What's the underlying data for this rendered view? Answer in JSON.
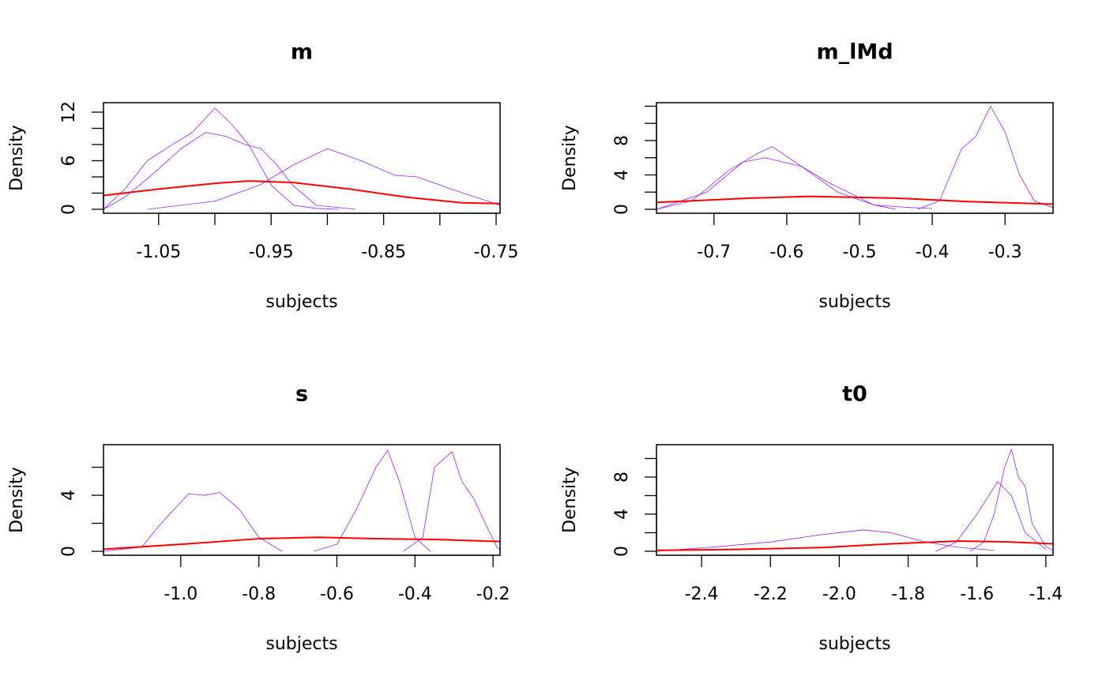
{
  "chart_data": [
    {
      "type": "line",
      "title": "m",
      "xlabel": "subjects",
      "ylabel": "Density",
      "xlim": [
        -1.099,
        -0.7465
      ],
      "ylim": [
        -0.49,
        13.17
      ],
      "xticks": [
        -1.05,
        -0.95,
        -0.85,
        -0.75
      ],
      "xminorticks": [
        -1.0,
        -0.9,
        -0.8
      ],
      "yticks": [
        0,
        6,
        12
      ],
      "yminorticks": [
        2,
        4,
        8,
        10
      ],
      "series": [
        {
          "color": "#a020f0",
          "x": [
            -1.099,
            -1.08,
            -1.06,
            -1.04,
            -1.02,
            -1.0,
            -0.985,
            -0.97,
            -0.95,
            -0.93,
            -0.91,
            -0.89
          ],
          "values": [
            0,
            2.5,
            6,
            7.8,
            9.5,
            12.5,
            10.5,
            8,
            3,
            0.5,
            0.1,
            0
          ]
        },
        {
          "color": "#a020f0",
          "x": [
            -1.099,
            -1.08,
            -1.058,
            -1.03,
            -1.008,
            -0.99,
            -0.973,
            -0.959,
            -0.945,
            -0.931,
            -0.91,
            -0.875
          ],
          "values": [
            0,
            1.5,
            4,
            7.5,
            9.5,
            9,
            8,
            7.5,
            5.5,
            3,
            0.5,
            0
          ]
        },
        {
          "color": "#a020f0",
          "x": [
            -1.06,
            -1.0,
            -0.96,
            -0.93,
            -0.9,
            -0.87,
            -0.84,
            -0.82,
            -0.79,
            -0.7465
          ],
          "values": [
            0,
            1,
            3,
            5.5,
            7.5,
            6,
            4.2,
            4,
            2.5,
            0.5
          ]
        },
        {
          "color": "#ff0000",
          "x": [
            -1.099,
            -1.05,
            -1.0,
            -0.97,
            -0.93,
            -0.88,
            -0.83,
            -0.78,
            -0.7465
          ],
          "values": [
            1.7,
            2.5,
            3.2,
            3.5,
            3.3,
            2.5,
            1.5,
            0.8,
            0.7
          ]
        }
      ]
    },
    {
      "type": "line",
      "title": "m_lMd",
      "xlabel": "subjects",
      "ylabel": "Density",
      "xlim": [
        -0.779,
        -0.234
      ],
      "ylim": [
        -0.46,
        12.41
      ],
      "xticks": [
        -0.7,
        -0.6,
        -0.5,
        -0.4,
        -0.3
      ],
      "yticks": [
        0,
        4,
        8
      ],
      "yminorticks": [
        2,
        6,
        10,
        12
      ],
      "series": [
        {
          "color": "#a020f0",
          "x": [
            -0.779,
            -0.73,
            -0.68,
            -0.64,
            -0.62,
            -0.58,
            -0.53,
            -0.48,
            -0.43,
            -0.4
          ],
          "values": [
            0,
            1,
            4.5,
            6.5,
            7.3,
            5,
            2,
            0.5,
            0.2,
            0.1
          ]
        },
        {
          "color": "#a020f0",
          "x": [
            -0.779,
            -0.71,
            -0.66,
            -0.63,
            -0.58,
            -0.54,
            -0.48,
            -0.45
          ],
          "values": [
            0,
            2,
            5.5,
            6,
            5,
            3,
            0.5,
            0
          ]
        },
        {
          "color": "#a020f0",
          "x": [
            -0.42,
            -0.39,
            -0.36,
            -0.34,
            -0.32,
            -0.3,
            -0.28,
            -0.26,
            -0.234
          ],
          "values": [
            0,
            1,
            7,
            8.5,
            12,
            9,
            4,
            1,
            0.2
          ]
        },
        {
          "color": "#ff0000",
          "x": [
            -0.779,
            -0.65,
            -0.57,
            -0.45,
            -0.35,
            -0.234
          ],
          "values": [
            0.8,
            1.3,
            1.5,
            1.3,
            0.9,
            0.6
          ]
        }
      ]
    },
    {
      "type": "line",
      "title": "s",
      "xlabel": "subjects",
      "ylabel": "Density",
      "xlim": [
        -1.198,
        -0.182
      ],
      "ylim": [
        -0.28,
        7.61
      ],
      "xticks": [
        {
          "value": -1.0,
          "label": "-1.0"
        },
        -0.8,
        -0.6,
        -0.4,
        -0.2
      ],
      "yticks": [
        0,
        4
      ],
      "yminorticks": [
        2,
        6
      ],
      "series": [
        {
          "color": "#a020f0",
          "x": [
            -1.198,
            -1.1,
            -1.05,
            -0.98,
            -0.94,
            -0.9,
            -0.85,
            -0.8,
            -0.74
          ],
          "values": [
            0,
            0.3,
            2,
            4.1,
            4,
            4.2,
            3,
            1,
            0
          ]
        },
        {
          "color": "#a020f0",
          "x": [
            -0.66,
            -0.6,
            -0.55,
            -0.5,
            -0.47,
            -0.44,
            -0.4,
            -0.36
          ],
          "values": [
            0,
            0.5,
            3,
            6,
            7.2,
            5,
            1,
            0
          ]
        },
        {
          "color": "#a020f0",
          "x": [
            -0.43,
            -0.38,
            -0.35,
            -0.33,
            -0.305,
            -0.28,
            -0.25,
            -0.22,
            -0.19,
            -0.182
          ],
          "values": [
            0,
            1,
            6,
            6.5,
            7.1,
            5,
            3.8,
            2,
            0.3,
            0.1
          ]
        },
        {
          "color": "#ff0000",
          "x": [
            -1.198,
            -1.0,
            -0.8,
            -0.65,
            -0.5,
            -0.35,
            -0.182
          ],
          "values": [
            0.15,
            0.5,
            0.9,
            1.0,
            0.9,
            0.85,
            0.7
          ]
        }
      ]
    },
    {
      "type": "line",
      "title": "t0",
      "xlabel": "subjects",
      "ylabel": "Density",
      "xlim": [
        -2.531,
        -1.379
      ],
      "ylim": [
        -0.43,
        11.49
      ],
      "xticks": [
        -2.4,
        -2.2,
        {
          "value": -2.0,
          "label": "-2.0"
        },
        -1.8,
        -1.6,
        -1.4
      ],
      "yticks": [
        0,
        4,
        8
      ],
      "yminorticks": [
        2,
        6,
        10
      ],
      "series": [
        {
          "color": "#a020f0",
          "x": [
            -2.531,
            -2.35,
            -2.2,
            -2.05,
            -1.93,
            -1.85,
            -1.75,
            -1.65,
            -1.55
          ],
          "values": [
            0,
            0.5,
            1,
            1.8,
            2.3,
            2,
            1,
            0.4,
            0.1
          ]
        },
        {
          "color": "#a020f0",
          "x": [
            -1.72,
            -1.66,
            -1.6,
            -1.54,
            -1.5,
            -1.46,
            -1.4
          ],
          "values": [
            0,
            1,
            4,
            7.5,
            6,
            2,
            0.2
          ]
        },
        {
          "color": "#a020f0",
          "x": [
            -1.62,
            -1.58,
            -1.55,
            -1.52,
            -1.5,
            -1.48,
            -1.46,
            -1.44,
            -1.4,
            -1.379
          ],
          "values": [
            0,
            1,
            4,
            9,
            11,
            8,
            7,
            3,
            0.5,
            0.1
          ]
        },
        {
          "color": "#ff0000",
          "x": [
            -2.531,
            -2.3,
            -2.05,
            -1.85,
            -1.65,
            -1.5,
            -1.379
          ],
          "values": [
            0.1,
            0.2,
            0.4,
            0.8,
            1.1,
            1.0,
            0.8
          ]
        }
      ]
    }
  ]
}
